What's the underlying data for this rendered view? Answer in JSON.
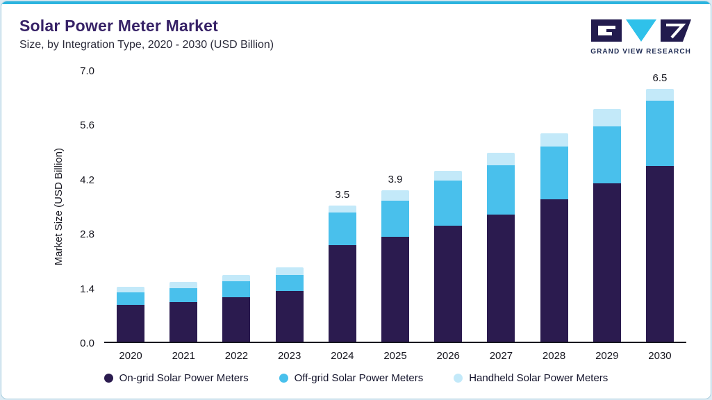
{
  "header": {
    "title": "Solar Power Meter Market",
    "subtitle": "Size, by Integration Type, 2020 - 2030 (USD Billion)",
    "logo_text": "GRAND VIEW RESEARCH"
  },
  "colors": {
    "accent": "#2bb4df",
    "title": "#372267",
    "axis": "#16161f",
    "logo_navy": "#221b4e",
    "logo_teal": "#2fc1ea"
  },
  "chart_data": {
    "type": "bar",
    "stacked": true,
    "title": "Solar Power Meter Market Size, by Integration Type, 2020 - 2030 (USD Billion)",
    "xlabel": "",
    "ylabel": "Market Size (USD Billion)",
    "ylim": [
      0,
      7.0
    ],
    "yticks": [
      0.0,
      1.4,
      2.8,
      4.2,
      5.6,
      7.0
    ],
    "grid": false,
    "legend_position": "bottom",
    "categories": [
      "2020",
      "2021",
      "2022",
      "2023",
      "2024",
      "2025",
      "2026",
      "2027",
      "2028",
      "2029",
      "2030"
    ],
    "series": [
      {
        "name": "On-grid Solar Power Meters",
        "color": "#2b1b4f",
        "values": [
          0.95,
          1.02,
          1.15,
          1.3,
          2.48,
          2.7,
          2.98,
          3.27,
          3.66,
          4.08,
          4.52
        ]
      },
      {
        "name": "Off-grid Solar Power Meters",
        "color": "#49c0ec",
        "values": [
          0.32,
          0.36,
          0.4,
          0.42,
          0.84,
          0.93,
          1.17,
          1.27,
          1.35,
          1.45,
          1.67
        ]
      },
      {
        "name": "Handheld Solar Power Meters",
        "color": "#c3e9f9",
        "values": [
          0.15,
          0.16,
          0.17,
          0.2,
          0.18,
          0.27,
          0.25,
          0.31,
          0.34,
          0.45,
          0.31
        ]
      }
    ],
    "total_labels": {
      "2024": "3.5",
      "2025": "3.9",
      "2030": "6.5"
    }
  }
}
